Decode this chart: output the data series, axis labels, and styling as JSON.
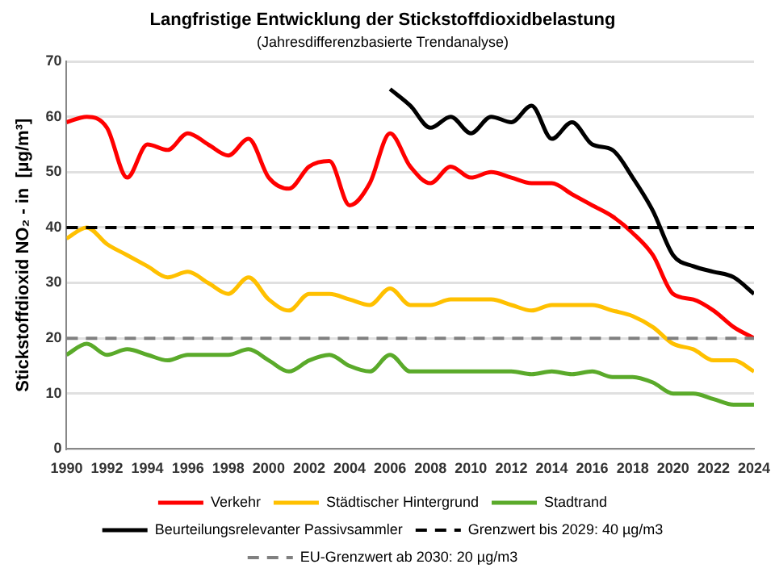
{
  "chart_data": {
    "type": "line",
    "title": "Langfristige Entwicklung der Stickstoffdioxidbelastung",
    "subtitle": "(Jahresdifferenzbasierte Trendanalyse)",
    "ylabel": "Stickstoffdioxid NO₂ - in  [µg/m³]",
    "x": [
      1990,
      1991,
      1992,
      1993,
      1994,
      1995,
      1996,
      1997,
      1998,
      1999,
      2000,
      2001,
      2002,
      2003,
      2004,
      2005,
      2006,
      2007,
      2008,
      2009,
      2010,
      2011,
      2012,
      2013,
      2014,
      2015,
      2016,
      2017,
      2018,
      2019,
      2020,
      2021,
      2022,
      2023,
      2024
    ],
    "series": [
      {
        "name": "Verkehr",
        "color": "#ff0000",
        "values": [
          59,
          60,
          58,
          49,
          55,
          54,
          57,
          55,
          53,
          56,
          49,
          47,
          51,
          52,
          44,
          48,
          57,
          51,
          48,
          51,
          49,
          50,
          49,
          48,
          48,
          46,
          44,
          42,
          39,
          35,
          28,
          27,
          25,
          22,
          20
        ]
      },
      {
        "name": "Städtischer Hintergrund",
        "color": "#ffc000",
        "values": [
          38,
          40,
          37,
          35,
          33,
          31,
          32,
          30,
          28,
          31,
          27,
          25,
          28,
          28,
          27,
          26,
          29,
          26,
          26,
          27,
          27,
          27,
          26,
          25,
          26,
          26,
          26,
          25,
          24,
          22,
          19,
          18,
          16,
          16,
          14
        ]
      },
      {
        "name": "Stadtrand",
        "color": "#5aaa2a",
        "values": [
          17,
          19,
          17,
          18,
          17,
          16,
          17,
          17,
          17,
          18,
          16,
          14,
          16,
          17,
          15,
          14,
          17,
          14,
          14,
          14,
          14,
          14,
          14,
          13.5,
          14,
          13.5,
          14,
          13,
          13,
          12,
          10,
          10,
          9,
          8,
          8
        ]
      },
      {
        "name": "Beurteilungsrelevanter Passivsammler",
        "color": "#000000",
        "x": [
          2006,
          2007,
          2008,
          2009,
          2010,
          2011,
          2012,
          2013,
          2014,
          2015,
          2016,
          2017,
          2018,
          2019,
          2020,
          2021,
          2022,
          2023,
          2024
        ],
        "values": [
          65,
          62,
          58,
          60,
          57,
          60,
          59,
          62,
          56,
          59,
          55,
          54,
          49,
          43,
          35,
          33,
          32,
          31,
          28
        ]
      }
    ],
    "ref_lines": [
      {
        "axis": "y",
        "value": 40,
        "label": "Grenzwert bis 2029: 40 µg/m3",
        "color": "#000000",
        "line_style": "dashed"
      },
      {
        "axis": "y",
        "value": 20,
        "label": "EU-Grenzwert ab 2030: 20 µg/m3",
        "color": "#808080",
        "line_style": "dashed"
      }
    ],
    "xlim": [
      1990,
      2024
    ],
    "xticks": [
      1990,
      1992,
      1994,
      1996,
      1998,
      2000,
      2002,
      2004,
      2006,
      2008,
      2010,
      2012,
      2014,
      2016,
      2018,
      2020,
      2022,
      2024
    ],
    "ylim": [
      0,
      70
    ],
    "yticks": [
      0,
      10,
      20,
      30,
      40,
      50,
      60,
      70
    ],
    "grid": "y",
    "legend": "bottom",
    "marker": "none",
    "line_style": "solid"
  }
}
